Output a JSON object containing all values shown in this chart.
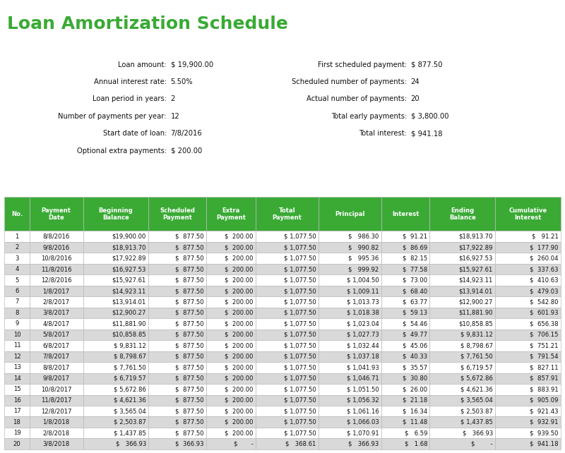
{
  "title": "Loan Amortization Schedule",
  "title_color": "#3aaa35",
  "bg_color": "#ffffff",
  "info_left": [
    [
      "Loan amount:",
      "$ 19,900.00"
    ],
    [
      "Annual interest rate:",
      "5.50%"
    ],
    [
      "Loan period in years:",
      "2"
    ],
    [
      "Number of payments per year:",
      "12"
    ],
    [
      "Start date of loan:",
      "7/8/2016"
    ],
    [
      "Optional extra payments:",
      "$ 200.00"
    ]
  ],
  "info_right": [
    [
      "First scheduled payment:",
      "$ 877.50"
    ],
    [
      "Scheduled number of payments:",
      "24"
    ],
    [
      "Actual number of payments:",
      "20"
    ],
    [
      "Total early payments:",
      "$ 3,800.00"
    ],
    [
      "Total interest:",
      "$ 941.18"
    ]
  ],
  "col_headers": [
    "No.",
    "Payment\nDate",
    "Beginning\nBalance",
    "Scheduled\nPayment",
    "Extra\nPayment",
    "Total\nPayment",
    "Principal",
    "Interest",
    "Ending\nBalance",
    "Cumulative\nInterest"
  ],
  "header_bg": "#3aaa35",
  "header_fg": "#ffffff",
  "row_odd_bg": "#ffffff",
  "row_even_bg": "#d9d9d9",
  "table_data": [
    [
      "1",
      "8/8/2016",
      "$19,900.00",
      "$  877.50",
      "$  200.00",
      "$ 1,077.50",
      "$   986.30",
      "$  91.21",
      "$18,913.70",
      "$   91.21"
    ],
    [
      "2",
      "9/8/2016",
      "$18,913.70",
      "$  877.50",
      "$  200.00",
      "$ 1,077.50",
      "$   990.82",
      "$  86.69",
      "$17,922.89",
      "$  177.90"
    ],
    [
      "3",
      "10/8/2016",
      "$17,922.89",
      "$  877.50",
      "$  200.00",
      "$ 1,077.50",
      "$   995.36",
      "$  82.15",
      "$16,927.53",
      "$  260.04"
    ],
    [
      "4",
      "11/8/2016",
      "$16,927.53",
      "$  877.50",
      "$  200.00",
      "$ 1,077.50",
      "$   999.92",
      "$  77.58",
      "$15,927.61",
      "$  337.63"
    ],
    [
      "5",
      "12/8/2016",
      "$15,927.61",
      "$  877.50",
      "$  200.00",
      "$ 1,077.50",
      "$ 1,004.50",
      "$  73.00",
      "$14,923.11",
      "$  410.63"
    ],
    [
      "6",
      "1/8/2017",
      "$14,923.11",
      "$  877.50",
      "$  200.00",
      "$ 1,077.50",
      "$ 1,009.11",
      "$  68.40",
      "$13,914.01",
      "$  479.03"
    ],
    [
      "7",
      "2/8/2017",
      "$13,914.01",
      "$  877.50",
      "$  200.00",
      "$ 1,077.50",
      "$ 1,013.73",
      "$  63.77",
      "$12,900.27",
      "$  542.80"
    ],
    [
      "8",
      "3/8/2017",
      "$12,900.27",
      "$  877.50",
      "$  200.00",
      "$ 1,077.50",
      "$ 1,018.38",
      "$  59.13",
      "$11,881.90",
      "$  601.93"
    ],
    [
      "9",
      "4/8/2017",
      "$11,881.90",
      "$  877.50",
      "$  200.00",
      "$ 1,077.50",
      "$ 1,023.04",
      "$  54.46",
      "$10,858.85",
      "$  656.38"
    ],
    [
      "10",
      "5/8/2017",
      "$10,858.85",
      "$  877.50",
      "$  200.00",
      "$ 1,077.50",
      "$ 1,027.73",
      "$  49.77",
      "$ 9,831.12",
      "$  706.15"
    ],
    [
      "11",
      "6/8/2017",
      "$ 9,831.12",
      "$  877.50",
      "$  200.00",
      "$ 1,077.50",
      "$ 1,032.44",
      "$  45.06",
      "$ 8,798.67",
      "$  751.21"
    ],
    [
      "12",
      "7/8/2017",
      "$ 8,798.67",
      "$  877.50",
      "$  200.00",
      "$ 1,077.50",
      "$ 1,037.18",
      "$  40.33",
      "$ 7,761.50",
      "$  791.54"
    ],
    [
      "13",
      "8/8/2017",
      "$ 7,761.50",
      "$  877.50",
      "$  200.00",
      "$ 1,077.50",
      "$ 1,041.93",
      "$  35.57",
      "$ 6,719.57",
      "$  827.11"
    ],
    [
      "14",
      "9/8/2017",
      "$ 6,719.57",
      "$  877.50",
      "$  200.00",
      "$ 1,077.50",
      "$ 1,046.71",
      "$  30.80",
      "$ 5,672.86",
      "$  857.91"
    ],
    [
      "15",
      "10/8/2017",
      "$ 5,672.86",
      "$  877.50",
      "$  200.00",
      "$ 1,077.50",
      "$ 1,051.50",
      "$  26.00",
      "$ 4,621.36",
      "$  883.91"
    ],
    [
      "16",
      "11/8/2017",
      "$ 4,621.36",
      "$  877.50",
      "$  200.00",
      "$ 1,077.50",
      "$ 1,056.32",
      "$  21.18",
      "$ 3,565.04",
      "$  905.09"
    ],
    [
      "17",
      "12/8/2017",
      "$ 3,565.04",
      "$  877.50",
      "$  200.00",
      "$ 1,077.50",
      "$ 1,061.16",
      "$  16.34",
      "$ 2,503.87",
      "$  921.43"
    ],
    [
      "18",
      "1/8/2018",
      "$ 2,503.87",
      "$  877.50",
      "$  200.00",
      "$ 1,077.50",
      "$ 1,066.03",
      "$  11.48",
      "$ 1,437.85",
      "$  932.91"
    ],
    [
      "19",
      "2/8/2018",
      "$ 1,437.85",
      "$  877.50",
      "$  200.00",
      "$ 1,077.50",
      "$ 1,070.91",
      "$   6.59",
      "$   366.93",
      "$  939.50"
    ],
    [
      "20",
      "3/8/2018",
      "$   366.93",
      "$  366.93",
      "$       -",
      "$   368.61",
      "$   366.93",
      "$   1.68",
      "$        -",
      "$  941.18"
    ]
  ]
}
